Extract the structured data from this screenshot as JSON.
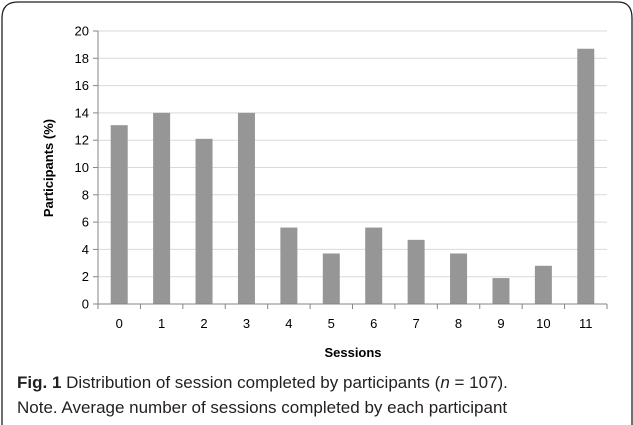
{
  "chart_data": {
    "type": "bar",
    "xlabel": "Sessions",
    "ylabel": "Participants (%)",
    "categories": [
      "0",
      "1",
      "2",
      "3",
      "4",
      "5",
      "6",
      "7",
      "8",
      "9",
      "10",
      "11"
    ],
    "values": [
      13.1,
      14.0,
      12.1,
      14.0,
      5.6,
      3.7,
      5.6,
      4.7,
      3.7,
      1.9,
      2.8,
      18.7
    ],
    "ylim": [
      0,
      20
    ],
    "yticks": [
      0,
      2,
      4,
      6,
      8,
      10,
      12,
      14,
      16,
      18,
      20
    ],
    "grid": true,
    "legend": "none",
    "colors": {
      "bar": "#969696",
      "grid": "#d9d9d9",
      "axis": "#868686",
      "frame": "#231f20"
    }
  },
  "caption": {
    "fig_label": "Fig. 1",
    "text_before_n": " Distribution of session completed by participants (",
    "n_symbol": "n",
    "text_after_n": " = 107).",
    "note": "Note. Average number of sessions completed by each participant"
  }
}
